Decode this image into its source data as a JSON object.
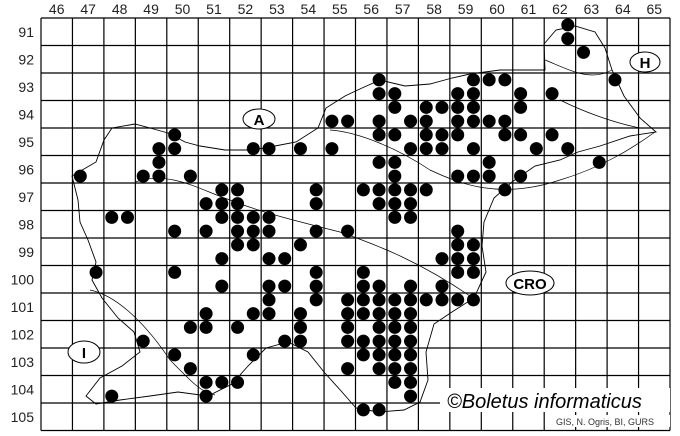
{
  "grid": {
    "columns": [
      "46",
      "47",
      "48",
      "49",
      "50",
      "51",
      "52",
      "53",
      "54",
      "55",
      "56",
      "57",
      "58",
      "59",
      "60",
      "61",
      "62",
      "63",
      "64",
      "65"
    ],
    "rows": [
      "91",
      "92",
      "93",
      "94",
      "95",
      "96",
      "97",
      "98",
      "99",
      "100",
      "101",
      "102",
      "103",
      "104",
      "105"
    ]
  },
  "country_labels": {
    "austria": "A",
    "hungary": "H",
    "italy": "I",
    "croatia": "CRO"
  },
  "copyright": "©Boletus informaticus",
  "credit": "GIS, N. Ogris, BI, GURS",
  "dot_color": "#000000",
  "records_quadrant_codes": [
    "9162-2",
    "9162-4",
    "9263-1",
    "9364-1",
    "9356-2",
    "9359-2",
    "9360-1",
    "9360-2",
    "9356-4",
    "9357-3",
    "9359-3",
    "9359-4",
    "9361-3",
    "9362-3",
    "9457-1",
    "9458-1",
    "9458-2",
    "9459-1",
    "9459-2",
    "9461-1",
    "9455-3",
    "9455-4",
    "9456-4",
    "9457-4",
    "9458-3",
    "9459-3",
    "9459-4",
    "9460-3",
    "9460-4",
    "9550-1",
    "9556-2",
    "9557-1",
    "9558-1",
    "9558-2",
    "9559-1",
    "9560-2",
    "9561-1",
    "9562-1",
    "9549-4",
    "9550-3",
    "9552-4",
    "9553-3",
    "9554-3",
    "9555-3",
    "9557-4",
    "9558-3",
    "9558-4",
    "9559-4",
    "9561-4",
    "9562-4",
    "9649-2",
    "9656-2",
    "9657-1",
    "9660-1",
    "9663-2",
    "9647-3",
    "9649-3",
    "9649-4",
    "9650-4",
    "9657-3",
    "9659-3",
    "9659-4",
    "9660-3",
    "9661-3",
    "9751-2",
    "9752-1",
    "9754-2",
    "9756-1",
    "9756-2",
    "9757-1",
    "9757-2",
    "9758-1",
    "9760-2",
    "9751-3",
    "9751-4",
    "9752-3",
    "9754-4",
    "9756-4",
    "9757-3",
    "9757-4",
    "9848-1",
    "9848-2",
    "9851-2",
    "9852-1",
    "9852-2",
    "9853-1",
    "9857-1",
    "9857-2",
    "9850-3",
    "9851-3",
    "9852-3",
    "9852-4",
    "9853-3",
    "9854-4",
    "9855-4",
    "9859-3",
    "9952-1",
    "9952-2",
    "9954-1",
    "9959-1",
    "9959-2",
    "9951-4",
    "9953-3",
    "9953-4",
    "9958-4",
    "9959-3",
    "9959-4",
    "10047-2",
    "10050-1",
    "10054-2",
    "10056-1",
    "10059-1",
    "10059-2",
    "10051-4",
    "10053-3",
    "10053-4",
    "10054-4",
    "10056-3",
    "10056-4",
    "10057-4",
    "10058-4",
    "10153-1",
    "10154-2",
    "10155-2",
    "10156-1",
    "10156-2",
    "10157-1",
    "10157-2",
    "10158-1",
    "10158-2",
    "10159-1",
    "10159-2",
    "10151-3",
    "10152-4",
    "10153-3",
    "10154-3",
    "10155-4",
    "10156-3",
    "10156-4",
    "10157-3",
    "10157-4",
    "10250-2",
    "10251-1",
    "10252-1",
    "10254-1",
    "10255-2",
    "10256-2",
    "10257-1",
    "10257-2",
    "10249-3",
    "10253-4",
    "10254-3",
    "10255-4",
    "10256-3",
    "10256-4",
    "10257-3",
    "10257-4",
    "10350-1",
    "10352-2",
    "10356-1",
    "10356-2",
    "10357-1",
    "10357-2",
    "10350-4",
    "10355-4",
    "10356-4",
    "10357-3",
    "10357-4",
    "10451-1",
    "10451-2",
    "10452-1",
    "10457-1",
    "10457-2",
    "10448-3",
    "10451-3",
    "10457-4",
    "10556-1",
    "10556-2"
  ]
}
